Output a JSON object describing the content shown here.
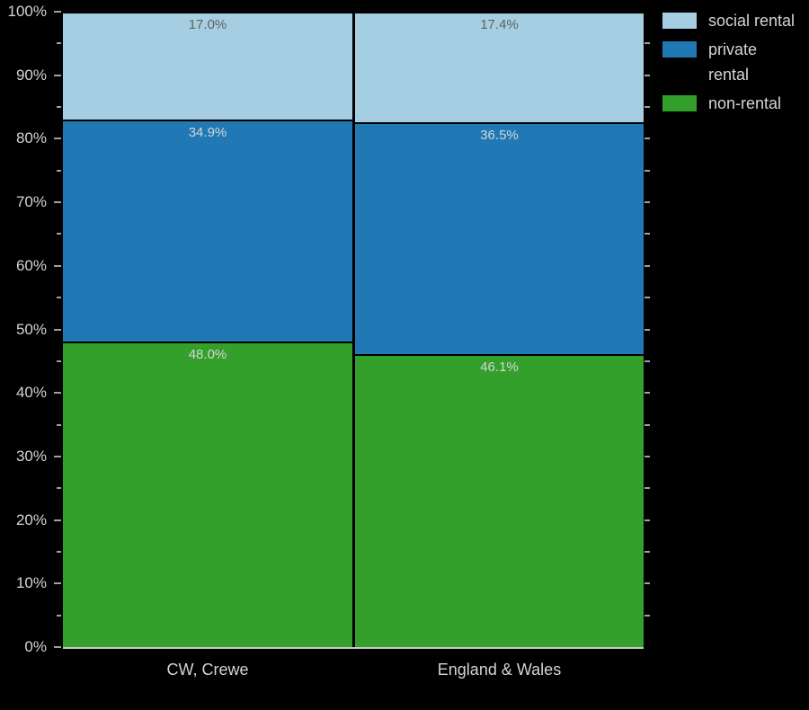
{
  "chart_data": {
    "type": "bar",
    "stacked": true,
    "orientation": "vertical",
    "title": "",
    "categories": [
      "CW, Crewe",
      "England & Wales"
    ],
    "series": [
      {
        "name": "social rental",
        "color": "#a6cee3",
        "values": [
          17.0,
          17.4
        ],
        "label_color": "#62625c"
      },
      {
        "name": "private rental",
        "color": "#2078b4",
        "values": [
          34.9,
          36.5
        ],
        "label_color": "#d6d6d6"
      },
      {
        "name": "non-rental",
        "color": "#33a02c",
        "values": [
          48.0,
          46.1
        ],
        "label_color": "#d6d6d6"
      }
    ],
    "value_labels": [
      [
        "17.0%",
        "17.4%"
      ],
      [
        "34.9%",
        "36.5%"
      ],
      [
        "48.0%",
        "46.1%"
      ]
    ],
    "ylim": [
      0,
      100
    ],
    "y_tick_labels": [
      "0%",
      "10%",
      "20%",
      "30%",
      "40%",
      "50%",
      "60%",
      "70%",
      "80%",
      "90%",
      "100%"
    ],
    "y_major_step": 10,
    "y_minor_step": 5,
    "grid": false,
    "legend_position": "outside upper right",
    "background": "#000000"
  },
  "legend": {
    "items": [
      {
        "name": "social rental",
        "display": "social rental",
        "color": "#a6cee3"
      },
      {
        "name": "private rental",
        "display": "private\nrental",
        "color": "#2078b4"
      },
      {
        "name": "non-rental",
        "display": "non-rental",
        "color": "#33a02c"
      }
    ]
  },
  "axis": {
    "text_color": "#d4d4d4",
    "tick_color": "#a0a0a0",
    "bottom_spine_color": "#c9c9c9"
  }
}
